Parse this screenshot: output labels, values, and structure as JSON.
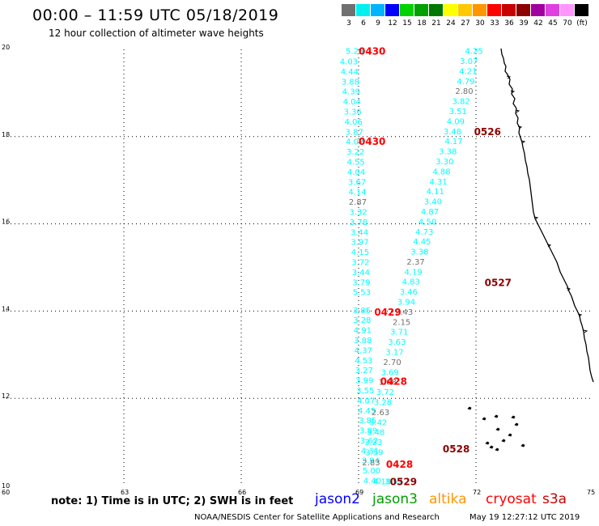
{
  "title": "00:00 – 11:59 UTC 05/18/2019",
  "subtitle": "12 hour collection of altimeter wave heights",
  "scale": {
    "swatches": [
      {
        "color": "#707070",
        "label": "3"
      },
      {
        "color": "#00f0f0",
        "label": "6"
      },
      {
        "color": "#00b4ff",
        "label": "9"
      },
      {
        "color": "#0000ff",
        "label": "12"
      },
      {
        "color": "#00d200",
        "label": "15"
      },
      {
        "color": "#00a000",
        "label": "18"
      },
      {
        "color": "#007800",
        "label": "21"
      },
      {
        "color": "#ffff00",
        "label": "24"
      },
      {
        "color": "#ffc800",
        "label": "27"
      },
      {
        "color": "#ff9600",
        "label": "30"
      },
      {
        "color": "#ff0000",
        "label": "33"
      },
      {
        "color": "#c80000",
        "label": "36"
      },
      {
        "color": "#8c0000",
        "label": "39"
      },
      {
        "color": "#a000a0",
        "label": "42"
      },
      {
        "color": "#e040e0",
        "label": "45"
      },
      {
        "color": "#ff96ff",
        "label": "70"
      },
      {
        "color": "#000000",
        "label": "(ft)"
      }
    ]
  },
  "axes": {
    "lon_ticks": [
      {
        "v": 60,
        "label": "60"
      },
      {
        "v": 63,
        "label": "63"
      },
      {
        "v": 66,
        "label": "66"
      },
      {
        "v": 69,
        "label": "69"
      },
      {
        "v": 72,
        "label": "72"
      },
      {
        "v": 75,
        "label": "75"
      }
    ],
    "lat_ticks": [
      {
        "v": 10,
        "label": "10"
      },
      {
        "v": 12,
        "label": "12"
      },
      {
        "v": 14,
        "label": "14"
      },
      {
        "v": 16,
        "label": "16"
      },
      {
        "v": 18,
        "label": "18"
      },
      {
        "v": 20,
        "label": "20"
      }
    ],
    "xlim": [
      60,
      75
    ],
    "ylim": [
      10,
      20
    ]
  },
  "chart_data": {
    "type": "scatter",
    "x_label": "longitude",
    "y_label": "latitude",
    "series": [
      {
        "name": "0430",
        "color": "#00ffff",
        "points": [
          {
            "lon": 68.9,
            "lat": 19.97,
            "label": "5.28"
          },
          {
            "lon": 68.75,
            "lat": 19.73,
            "label": "4.03"
          },
          {
            "lon": 68.77,
            "lat": 19.5,
            "label": "4.44"
          },
          {
            "lon": 68.79,
            "lat": 19.27,
            "label": "3.88"
          },
          {
            "lon": 68.81,
            "lat": 19.04,
            "label": "4.39"
          },
          {
            "lon": 68.83,
            "lat": 18.81,
            "label": "4.04"
          },
          {
            "lon": 68.85,
            "lat": 18.58,
            "label": "3.36"
          },
          {
            "lon": 68.87,
            "lat": 18.35,
            "label": "4.06"
          },
          {
            "lon": 68.89,
            "lat": 18.12,
            "label": "3.87"
          },
          {
            "lon": 68.9,
            "lat": 17.89,
            "label": "4.02"
          },
          {
            "lon": 68.92,
            "lat": 17.66,
            "label": "3.22"
          },
          {
            "lon": 68.93,
            "lat": 17.43,
            "label": "4.55"
          },
          {
            "lon": 68.94,
            "lat": 17.2,
            "label": "4.04"
          },
          {
            "lon": 68.96,
            "lat": 16.97,
            "label": "3.67"
          },
          {
            "lon": 68.97,
            "lat": 16.74,
            "label": "4.14"
          },
          {
            "lon": 68.98,
            "lat": 16.51,
            "label": "2.87",
            "color": "#707070"
          },
          {
            "lon": 68.99,
            "lat": 16.28,
            "label": "3.32"
          },
          {
            "lon": 69.0,
            "lat": 16.05,
            "label": "3.78"
          },
          {
            "lon": 69.02,
            "lat": 15.82,
            "label": "3.44"
          },
          {
            "lon": 69.03,
            "lat": 15.59,
            "label": "3.97"
          },
          {
            "lon": 69.04,
            "lat": 15.36,
            "label": "4.15"
          },
          {
            "lon": 69.05,
            "lat": 15.13,
            "label": "3.72"
          },
          {
            "lon": 69.06,
            "lat": 14.9,
            "label": "3.44"
          },
          {
            "lon": 69.07,
            "lat": 14.67,
            "label": "3.79"
          },
          {
            "lon": 69.08,
            "lat": 14.44,
            "label": "5.53"
          }
        ]
      },
      {
        "name": "0429",
        "color": "#00ffff",
        "points": [
          {
            "lon": 69.08,
            "lat": 14.03,
            "label": "3.85"
          },
          {
            "lon": 69.09,
            "lat": 13.8,
            "label": "3.28"
          },
          {
            "lon": 69.1,
            "lat": 13.57,
            "label": "4.91"
          },
          {
            "lon": 69.11,
            "lat": 13.34,
            "label": "3.88"
          },
          {
            "lon": 69.12,
            "lat": 13.11,
            "label": "4.37"
          },
          {
            "lon": 69.13,
            "lat": 12.88,
            "label": "4.53"
          },
          {
            "lon": 69.14,
            "lat": 12.65,
            "label": "3.27"
          }
        ]
      },
      {
        "name": "0428",
        "color": "#00ffff",
        "points": [
          {
            "lon": 69.15,
            "lat": 12.42,
            "label": "3.99"
          },
          {
            "lon": 69.17,
            "lat": 12.19,
            "label": "3.55"
          },
          {
            "lon": 69.19,
            "lat": 11.96,
            "label": "4.07"
          },
          {
            "lon": 69.21,
            "lat": 11.73,
            "label": "4.45"
          },
          {
            "lon": 69.23,
            "lat": 11.5,
            "label": "3.85"
          },
          {
            "lon": 69.25,
            "lat": 11.27,
            "label": "3.89"
          },
          {
            "lon": 69.27,
            "lat": 11.04,
            "label": "3.62"
          },
          {
            "lon": 69.29,
            "lat": 10.81,
            "label": "4.31"
          },
          {
            "lon": 69.31,
            "lat": 10.58,
            "label": "3.94"
          },
          {
            "lon": 69.33,
            "lat": 10.35,
            "label": "5.00"
          },
          {
            "lon": 69.35,
            "lat": 10.12,
            "label": "4.40"
          },
          {
            "lon": 69.6,
            "lat": 10.1,
            "label": "4.18"
          }
        ]
      },
      {
        "name": "0526",
        "color": "#00ffff",
        "points": [
          {
            "lon": 71.95,
            "lat": 19.97,
            "label": "4.25"
          },
          {
            "lon": 71.82,
            "lat": 19.74,
            "label": "3.07"
          },
          {
            "lon": 71.8,
            "lat": 19.51,
            "label": "4.21"
          },
          {
            "lon": 71.74,
            "lat": 19.28,
            "label": "4.79"
          },
          {
            "lon": 71.7,
            "lat": 19.05,
            "label": "2.80",
            "color": "#707070"
          },
          {
            "lon": 71.62,
            "lat": 18.82,
            "label": "3.82"
          },
          {
            "lon": 71.54,
            "lat": 18.59,
            "label": "3.51"
          },
          {
            "lon": 71.48,
            "lat": 18.36,
            "label": "4.09"
          },
          {
            "lon": 71.4,
            "lat": 18.13,
            "label": "3.48"
          }
        ]
      },
      {
        "name": "0527",
        "color": "#00ffff",
        "points": [
          {
            "lon": 71.43,
            "lat": 17.9,
            "label": "4.17"
          },
          {
            "lon": 71.28,
            "lat": 17.67,
            "label": "3.38"
          },
          {
            "lon": 71.2,
            "lat": 17.44,
            "label": "3.30"
          },
          {
            "lon": 71.12,
            "lat": 17.21,
            "label": "4.88"
          },
          {
            "lon": 71.04,
            "lat": 16.98,
            "label": "4.31"
          },
          {
            "lon": 70.96,
            "lat": 16.75,
            "label": "4.11"
          },
          {
            "lon": 70.9,
            "lat": 16.52,
            "label": "3.40"
          },
          {
            "lon": 70.82,
            "lat": 16.29,
            "label": "4.87"
          },
          {
            "lon": 70.76,
            "lat": 16.06,
            "label": "4.50"
          },
          {
            "lon": 70.68,
            "lat": 15.83,
            "label": "4.73"
          },
          {
            "lon": 70.62,
            "lat": 15.6,
            "label": "4.45"
          },
          {
            "lon": 70.56,
            "lat": 15.37,
            "label": "3.38"
          },
          {
            "lon": 70.46,
            "lat": 15.14,
            "label": "2.37",
            "color": "#707070"
          },
          {
            "lon": 70.4,
            "lat": 14.91,
            "label": "4.19"
          },
          {
            "lon": 70.34,
            "lat": 14.68,
            "label": "4.83"
          },
          {
            "lon": 70.28,
            "lat": 14.45,
            "label": "3.46"
          },
          {
            "lon": 70.22,
            "lat": 14.22,
            "label": "3.94"
          },
          {
            "lon": 70.16,
            "lat": 13.99,
            "label": "2.43",
            "color": "#707070"
          },
          {
            "lon": 70.1,
            "lat": 13.76,
            "label": "2.15",
            "color": "#707070"
          },
          {
            "lon": 70.04,
            "lat": 13.53,
            "label": "3.71"
          },
          {
            "lon": 69.98,
            "lat": 13.3,
            "label": "3.63"
          },
          {
            "lon": 69.92,
            "lat": 13.07,
            "label": "3.17"
          },
          {
            "lon": 69.86,
            "lat": 12.84,
            "label": "2.70",
            "color": "#707070"
          },
          {
            "lon": 69.8,
            "lat": 12.61,
            "label": "3.69"
          }
        ]
      },
      {
        "name": "0528",
        "color": "#00ffff",
        "points": [
          {
            "lon": 69.74,
            "lat": 12.38,
            "label": "1.68",
            "color": "#707070"
          },
          {
            "lon": 69.68,
            "lat": 12.15,
            "label": "3.72"
          },
          {
            "lon": 69.62,
            "lat": 11.92,
            "label": "3.28"
          },
          {
            "lon": 69.56,
            "lat": 11.69,
            "label": "2.63",
            "color": "#707070"
          },
          {
            "lon": 69.5,
            "lat": 11.46,
            "label": "3.42"
          },
          {
            "lon": 69.44,
            "lat": 11.23,
            "label": "3.48"
          },
          {
            "lon": 69.38,
            "lat": 11.0,
            "label": "3.23"
          },
          {
            "lon": 69.4,
            "lat": 10.77,
            "label": "3.59"
          },
          {
            "lon": 69.32,
            "lat": 10.54,
            "label": "2.83",
            "color": "#707070"
          },
          {
            "lon": 69.9,
            "lat": 10.1,
            "label": "3.52"
          }
        ]
      }
    ],
    "pass_labels": [
      {
        "lon": 69.0,
        "lat": 19.97,
        "text": "0430",
        "color": "#ff0000"
      },
      {
        "lon": 69.0,
        "lat": 17.9,
        "text": "0430",
        "color": "#ff0000"
      },
      {
        "lon": 71.95,
        "lat": 18.13,
        "text": "0526",
        "color": "#8c0000"
      },
      {
        "lon": 72.22,
        "lat": 14.67,
        "text": "0527",
        "color": "#8c0000"
      },
      {
        "lon": 69.4,
        "lat": 13.99,
        "text": "0429",
        "color": "#ff0000"
      },
      {
        "lon": 69.55,
        "lat": 12.4,
        "text": "0428",
        "color": "#ff0000"
      },
      {
        "lon": 71.15,
        "lat": 10.85,
        "text": "0528",
        "color": "#8c0000"
      },
      {
        "lon": 69.7,
        "lat": 10.5,
        "text": "0428",
        "color": "#ff0000"
      },
      {
        "lon": 69.8,
        "lat": 10.1,
        "text": "0529",
        "color": "#8c0000"
      }
    ]
  },
  "note": "note: 1) Time is in UTC; 2) SWH is in feet",
  "satellites": [
    {
      "name": "jason2",
      "color": "#0000ff"
    },
    {
      "name": "jason3",
      "color": "#00a000"
    },
    {
      "name": "altika",
      "color": "#ff9600"
    },
    {
      "name": "cryosat",
      "color": "#ff0000"
    },
    {
      "name": "s3a",
      "color": "#c80000"
    }
  ],
  "credit": "NOAA/NESDIS Center for Satellite Applications and Research",
  "timestamp": "May 19 12:27:12 UTC 2019"
}
